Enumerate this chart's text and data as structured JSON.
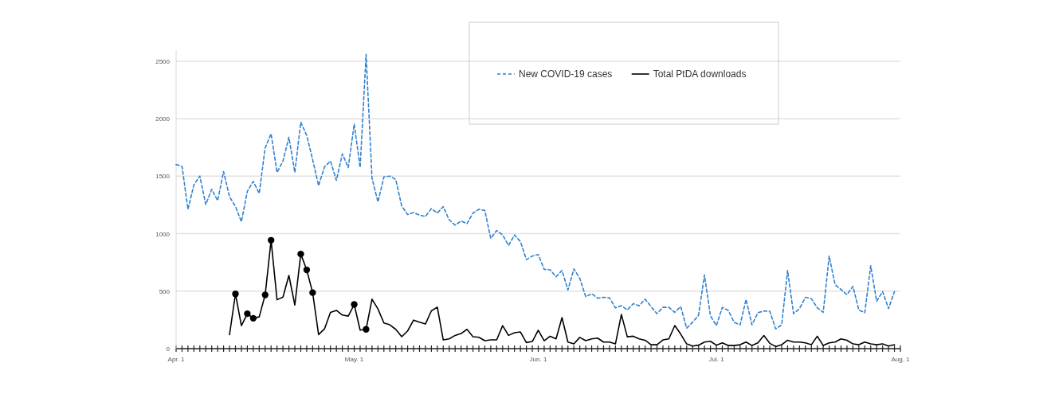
{
  "chart_data": {
    "type": "line",
    "x": [
      "--04-01",
      "--04-02",
      "--04-03",
      "--04-04",
      "--04-05",
      "--04-06",
      "--04-07",
      "--04-08",
      "--04-09",
      "--04-10",
      "--04-11",
      "--04-12",
      "--04-13",
      "--04-14",
      "--04-15",
      "--04-16",
      "--04-17",
      "--04-18",
      "--04-19",
      "--04-20",
      "--04-21",
      "--04-22",
      "--04-23",
      "--04-24",
      "--04-25",
      "--04-26",
      "--04-27",
      "--04-28",
      "--04-29",
      "--04-30",
      "--05-01",
      "--05-02",
      "--05-03",
      "--05-04",
      "--05-05",
      "--05-06",
      "--05-07",
      "--05-08",
      "--05-09",
      "--05-10",
      "--05-11",
      "--05-12",
      "--05-13",
      "--05-14",
      "--05-15",
      "--05-16",
      "--05-17",
      "--05-18",
      "--05-19",
      "--05-20",
      "--05-21",
      "--05-22",
      "--05-23",
      "--05-24",
      "--05-25",
      "--05-26",
      "--05-27",
      "--05-28",
      "--05-29",
      "--05-30",
      "--05-31",
      "--06-01",
      "--06-02",
      "--06-03",
      "--06-04",
      "--06-05",
      "--06-06",
      "--06-07",
      "--06-08",
      "--06-09",
      "--06-10",
      "--06-11",
      "--06-12",
      "--06-13",
      "--06-14",
      "--06-15",
      "--06-16",
      "--06-17",
      "--06-18",
      "--06-19",
      "--06-20",
      "--06-21",
      "--06-22",
      "--06-23",
      "--06-24",
      "--06-25",
      "--06-26",
      "--06-27",
      "--06-28",
      "--06-29",
      "--06-30",
      "--07-01",
      "--07-02",
      "--07-03",
      "--07-04",
      "--07-05",
      "--07-06",
      "--07-07",
      "--07-08",
      "--07-09",
      "--07-10",
      "--07-11",
      "--07-12",
      "--07-13",
      "--07-14",
      "--07-15",
      "--07-16",
      "--07-17",
      "--07-18",
      "--07-19",
      "--07-20",
      "--07-21",
      "--07-22",
      "--07-23",
      "--07-24",
      "--07-25",
      "--07-26",
      "--07-27",
      "--07-28",
      "--07-29",
      "--07-30",
      "--07-31"
    ],
    "series": [
      {
        "name": "New COVID-19 cases",
        "color": "#2f80d0",
        "line_style": "dashed",
        "values": [
          1602,
          1586,
          1212,
          1425,
          1501,
          1253,
          1386,
          1287,
          1540,
          1322,
          1237,
          1104,
          1368,
          1455,
          1350,
          1747,
          1869,
          1533,
          1632,
          1839,
          1533,
          1970,
          1855,
          1644,
          1418,
          1582,
          1632,
          1464,
          1694,
          1575,
          1954,
          1575,
          2559,
          1483,
          1276,
          1494,
          1501,
          1471,
          1241,
          1166,
          1184,
          1161,
          1150,
          1218,
          1179,
          1235,
          1120,
          1074,
          1110,
          1087,
          1179,
          1212,
          1202,
          959,
          1028,
          989,
          897,
          989,
          931,
          775,
          805,
          819,
          690,
          686,
          625,
          680,
          510,
          693,
          611,
          451,
          478,
          439,
          446,
          442,
          355,
          373,
          336,
          391,
          373,
          430,
          366,
          304,
          359,
          359,
          316,
          366,
          178,
          229,
          291,
          641,
          286,
          200,
          359,
          332,
          229,
          206,
          428,
          206,
          313,
          327,
          325,
          172,
          206,
          680,
          304,
          348,
          446,
          435,
          355,
          316,
          805,
          556,
          515,
          469,
          542,
          336,
          313,
          721,
          412,
          497,
          348,
          497
        ]
      },
      {
        "name": "Total PtDA downloads",
        "color": "#000000",
        "line_style": "solid",
        "values": [
          null,
          null,
          null,
          null,
          null,
          null,
          null,
          null,
          null,
          122,
          476,
          200,
          304,
          264,
          276,
          467,
          943,
          425,
          448,
          637,
          379,
          823,
          685,
          487,
          122,
          172,
          315,
          333,
          292,
          283,
          384,
          161,
          168,
          430,
          345,
          223,
          207,
          168,
          104,
          154,
          248,
          230,
          214,
          329,
          361,
          76,
          85,
          115,
          131,
          168,
          104,
          99,
          69,
          76,
          76,
          200,
          115,
          138,
          145,
          53,
          62,
          160,
          69,
          108,
          85,
          270,
          57,
          41,
          98,
          69,
          85,
          92,
          57,
          57,
          41,
          297,
          103,
          108,
          85,
          73,
          34,
          34,
          76,
          85,
          201,
          126,
          41,
          23,
          30,
          57,
          64,
          30,
          50,
          27,
          27,
          34,
          57,
          27,
          50,
          114,
          46,
          18,
          34,
          73,
          57,
          57,
          50,
          34,
          108,
          27,
          50,
          57,
          85,
          73,
          41,
          34,
          57,
          41,
          34,
          41,
          23,
          34
        ]
      },
      {
        "type": "scatter",
        "color": "#000000",
        "marker": "circle",
        "x": [
          "--04-11",
          "--04-13",
          "--04-14",
          "--04-16",
          "--04-17",
          "--04-22",
          "--04-23",
          "--04-24",
          "--05-01",
          "--05-03"
        ],
        "values": [
          476,
          304,
          264,
          467,
          943,
          823,
          685,
          487,
          384,
          168
        ]
      }
    ],
    "xlim": [
      "--04-01",
      "--08-01"
    ],
    "xticks": [
      {
        "value": "--04-01",
        "label": "Apr. 1"
      },
      {
        "value": "--04-02",
        "label": null
      },
      {
        "value": "--04-03",
        "label": null
      },
      {
        "value": "--04-04",
        "label": null
      },
      {
        "value": "--04-05",
        "label": null
      },
      {
        "value": "--04-06",
        "label": null
      },
      {
        "value": "--04-07",
        "label": null
      },
      {
        "value": "--04-08",
        "label": null
      },
      {
        "value": "--04-09",
        "label": null
      },
      {
        "value": "--04-10",
        "label": null
      },
      {
        "value": "--04-11",
        "label": null
      },
      {
        "value": "--04-12",
        "label": null
      },
      {
        "value": "--04-13",
        "label": null
      },
      {
        "value": "--04-14",
        "label": null
      },
      {
        "value": "--04-15",
        "label": null
      },
      {
        "value": "--04-16",
        "label": null
      },
      {
        "value": "--04-17",
        "label": null
      },
      {
        "value": "--04-18",
        "label": null
      },
      {
        "value": "--04-19",
        "label": null
      },
      {
        "value": "--04-20",
        "label": null
      },
      {
        "value": "--04-21",
        "label": null
      },
      {
        "value": "--04-22",
        "label": null
      },
      {
        "value": "--04-23",
        "label": null
      },
      {
        "value": "--04-24",
        "label": null
      },
      {
        "value": "--04-25",
        "label": null
      },
      {
        "value": "--04-26",
        "label": null
      },
      {
        "value": "--04-27",
        "label": null
      },
      {
        "value": "--04-28",
        "label": null
      },
      {
        "value": "--04-29",
        "label": null
      },
      {
        "value": "--04-30",
        "label": null
      },
      {
        "value": "--05-01",
        "label": "May. 1"
      },
      {
        "value": "--05-02",
        "label": null
      },
      {
        "value": "--05-03",
        "label": null
      },
      {
        "value": "--05-04",
        "label": null
      },
      {
        "value": "--05-05",
        "label": null
      },
      {
        "value": "--05-06",
        "label": null
      },
      {
        "value": "--05-07",
        "label": null
      },
      {
        "value": "--05-08",
        "label": null
      },
      {
        "value": "--05-09",
        "label": null
      },
      {
        "value": "--05-10",
        "label": null
      },
      {
        "value": "--05-11",
        "label": null
      },
      {
        "value": "--05-12",
        "label": null
      },
      {
        "value": "--05-13",
        "label": null
      },
      {
        "value": "--05-14",
        "label": null
      },
      {
        "value": "--05-15",
        "label": null
      },
      {
        "value": "--05-16",
        "label": null
      },
      {
        "value": "--05-17",
        "label": null
      },
      {
        "value": "--05-18",
        "label": null
      },
      {
        "value": "--05-19",
        "label": null
      },
      {
        "value": "--05-20",
        "label": null
      },
      {
        "value": "--05-21",
        "label": null
      },
      {
        "value": "--05-22",
        "label": null
      },
      {
        "value": "--05-23",
        "label": null
      },
      {
        "value": "--05-24",
        "label": null
      },
      {
        "value": "--05-25",
        "label": null
      },
      {
        "value": "--05-26",
        "label": null
      },
      {
        "value": "--05-27",
        "label": null
      },
      {
        "value": "--05-28",
        "label": null
      },
      {
        "value": "--05-29",
        "label": null
      },
      {
        "value": "--05-30",
        "label": null
      },
      {
        "value": "--05-31",
        "label": null
      },
      {
        "value": "--06-01",
        "label": "Jun. 1"
      },
      {
        "value": "--06-02",
        "label": null
      },
      {
        "value": "--06-03",
        "label": null
      },
      {
        "value": "--06-04",
        "label": null
      },
      {
        "value": "--06-05",
        "label": null
      },
      {
        "value": "--06-06",
        "label": null
      },
      {
        "value": "--06-07",
        "label": null
      },
      {
        "value": "--06-08",
        "label": null
      },
      {
        "value": "--06-09",
        "label": null
      },
      {
        "value": "--06-10",
        "label": null
      },
      {
        "value": "--06-11",
        "label": null
      },
      {
        "value": "--06-12",
        "label": null
      },
      {
        "value": "--06-13",
        "label": null
      },
      {
        "value": "--06-14",
        "label": null
      },
      {
        "value": "--06-15",
        "label": null
      },
      {
        "value": "--06-16",
        "label": null
      },
      {
        "value": "--06-17",
        "label": null
      },
      {
        "value": "--06-18",
        "label": null
      },
      {
        "value": "--06-19",
        "label": null
      },
      {
        "value": "--06-20",
        "label": null
      },
      {
        "value": "--06-21",
        "label": null
      },
      {
        "value": "--06-22",
        "label": null
      },
      {
        "value": "--06-23",
        "label": null
      },
      {
        "value": "--06-24",
        "label": null
      },
      {
        "value": "--06-25",
        "label": null
      },
      {
        "value": "--06-26",
        "label": null
      },
      {
        "value": "--06-27",
        "label": null
      },
      {
        "value": "--06-28",
        "label": null
      },
      {
        "value": "--06-29",
        "label": null
      },
      {
        "value": "--06-30",
        "label": null
      },
      {
        "value": "--07-01",
        "label": "Jul. 1"
      },
      {
        "value": "--07-02",
        "label": null
      },
      {
        "value": "--07-03",
        "label": null
      },
      {
        "value": "--07-04",
        "label": null
      },
      {
        "value": "--07-05",
        "label": null
      },
      {
        "value": "--07-06",
        "label": null
      },
      {
        "value": "--07-07",
        "label": null
      },
      {
        "value": "--07-08",
        "label": null
      },
      {
        "value": "--07-09",
        "label": null
      },
      {
        "value": "--07-10",
        "label": null
      },
      {
        "value": "--07-11",
        "label": null
      },
      {
        "value": "--07-12",
        "label": null
      },
      {
        "value": "--07-13",
        "label": null
      },
      {
        "value": "--07-14",
        "label": null
      },
      {
        "value": "--07-15",
        "label": null
      },
      {
        "value": "--07-16",
        "label": null
      },
      {
        "value": "--07-17",
        "label": null
      },
      {
        "value": "--07-18",
        "label": null
      },
      {
        "value": "--07-19",
        "label": null
      },
      {
        "value": "--07-20",
        "label": null
      },
      {
        "value": "--07-21",
        "label": null
      },
      {
        "value": "--07-22",
        "label": null
      },
      {
        "value": "--07-23",
        "label": null
      },
      {
        "value": "--07-24",
        "label": null
      },
      {
        "value": "--07-25",
        "label": null
      },
      {
        "value": "--07-26",
        "label": null
      },
      {
        "value": "--07-27",
        "label": null
      },
      {
        "value": "--07-28",
        "label": null
      },
      {
        "value": "--07-29",
        "label": null
      },
      {
        "value": "--07-30",
        "label": null
      },
      {
        "value": "--07-31",
        "label": null
      },
      {
        "value": "--08-01",
        "label": "Aug. 1"
      }
    ],
    "ylim": [
      0,
      2600
    ],
    "yticks": [
      0,
      500,
      1000,
      1500,
      2000,
      2500
    ],
    "grid": "y",
    "legend": "top"
  }
}
